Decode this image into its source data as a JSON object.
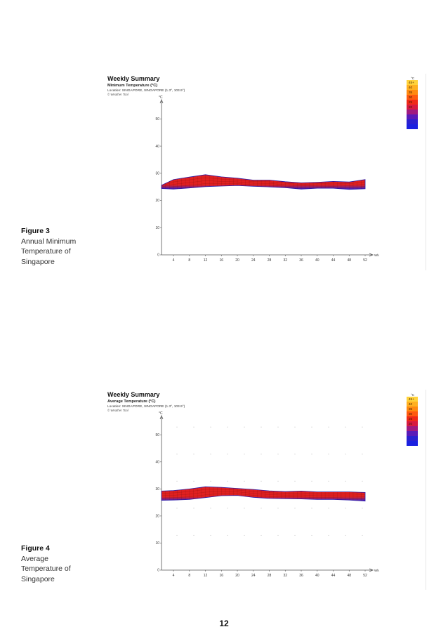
{
  "page_number": "12",
  "figures": [
    {
      "caption_label": "Figure 3",
      "caption_lines": [
        "Annual Minimum",
        "Temperature of",
        "Singapore"
      ]
    },
    {
      "caption_label": "Figure 4",
      "caption_lines": [
        "Average",
        "Temperature of",
        "Singapore"
      ]
    }
  ],
  "legend_labels": [
    "45+",
    "40",
    "35",
    "30",
    "25",
    "20"
  ],
  "legend_unit": "°C",
  "chart_data": [
    {
      "type": "area",
      "title": "Weekly Summary",
      "subtitle": "Minimum Temperature (°C)",
      "location": "Location: SINGAPORE,  SINGAPORE (1.3°, 103.9°)",
      "credit": "© Weather Tool",
      "ylabel": "°C",
      "xlabel": "Wk",
      "ylim": [
        0,
        55
      ],
      "xlim": [
        1,
        52
      ],
      "xticks": [
        4,
        8,
        12,
        16,
        20,
        24,
        28,
        32,
        36,
        40,
        44,
        48,
        52
      ],
      "yticks": [
        0,
        10,
        20,
        30,
        40,
        50
      ],
      "grid": false,
      "colors": {
        "high": "#e02020",
        "low": "#3020d0",
        "mid": "#ff6a10"
      },
      "x": [
        1,
        4,
        8,
        12,
        16,
        20,
        24,
        28,
        32,
        36,
        40,
        44,
        48,
        52
      ],
      "upper": [
        25.6,
        27.7,
        28.6,
        29.5,
        28.7,
        28.2,
        27.5,
        27.5,
        26.9,
        26.5,
        26.7,
        27.0,
        26.8,
        27.7
      ],
      "lower": [
        24.4,
        24.2,
        24.6,
        25.1,
        25.3,
        25.5,
        25.2,
        25.0,
        24.7,
        24.2,
        24.5,
        24.5,
        24.1,
        24.3
      ]
    },
    {
      "type": "area",
      "title": "Weekly Summary",
      "subtitle": "Average Temperature (°C)",
      "location": "Location: SINGAPORE,  SINGAPORE (1.3°, 103.9°)",
      "credit": "© Weather Tool",
      "ylabel": "°C",
      "xlabel": "Wk",
      "ylim": [
        0,
        55
      ],
      "xlim": [
        1,
        52
      ],
      "xticks": [
        4,
        8,
        12,
        16,
        20,
        24,
        28,
        32,
        36,
        40,
        44,
        48,
        52
      ],
      "yticks": [
        0,
        10,
        20,
        30,
        40,
        50
      ],
      "grid": true,
      "colors": {
        "high": "#e02020",
        "low": "#3020d0",
        "mid": "#ff6a10"
      },
      "x": [
        1,
        4,
        8,
        12,
        16,
        20,
        24,
        28,
        32,
        36,
        40,
        44,
        48,
        52
      ],
      "upper": [
        29.2,
        29.4,
        30.0,
        30.8,
        30.6,
        30.2,
        29.8,
        29.3,
        29.0,
        29.2,
        28.9,
        28.9,
        28.9,
        28.7
      ],
      "lower": [
        25.8,
        25.9,
        26.1,
        26.8,
        27.5,
        27.6,
        26.9,
        26.5,
        26.4,
        26.3,
        26.1,
        26.1,
        25.9,
        25.5
      ]
    }
  ]
}
